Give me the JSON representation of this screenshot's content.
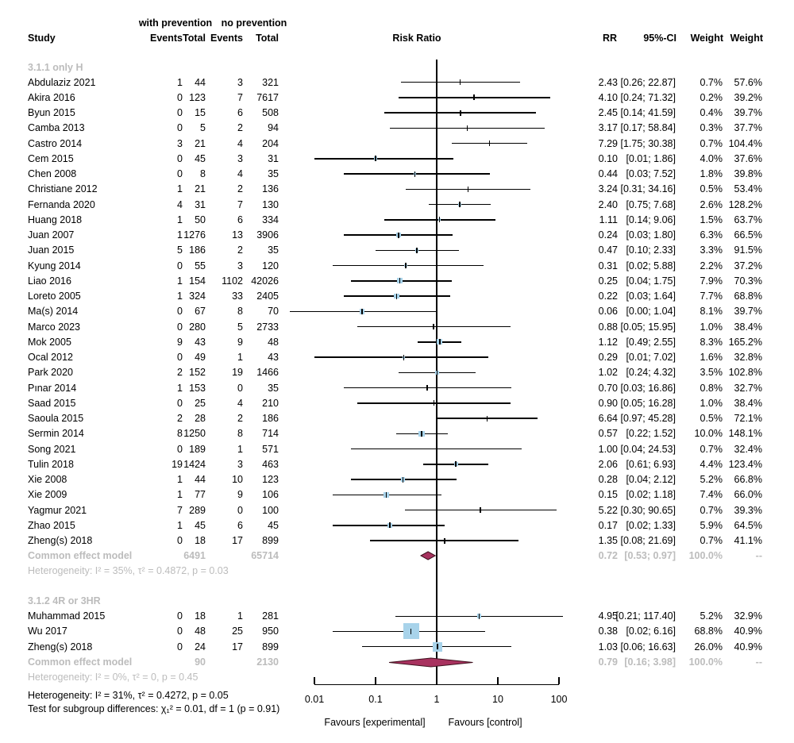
{
  "chart_data": {
    "type": "forest",
    "effect_measure": "Risk Ratio",
    "x_scale": "log",
    "x_tick_labels": [
      "0.01",
      "0.1",
      "1",
      "10",
      "100"
    ],
    "x_tick_values": [
      0.01,
      0.1,
      1,
      10,
      100
    ],
    "null_line_value": 1,
    "xlabel_left": "Favours [experimental]",
    "xlabel_right": "Favours [control]",
    "columns_left": {
      "group1": "with prevention",
      "group2": "no prevention",
      "study": "Study",
      "events1": "Events",
      "total1": "Total",
      "events2": "Events",
      "total2": "Total"
    },
    "columns_right": {
      "plot_title": "Risk Ratio",
      "rr": "RR",
      "ci": "95%-CI",
      "weight_common": "Weight",
      "weight_random": "Weight"
    },
    "groups": [
      {
        "title": "3.1.1 only H",
        "studies": [
          {
            "study": "Abdulaziz 2021",
            "events1": "1",
            "total1": "44",
            "events2": "3",
            "total2": "321",
            "rr": 2.43,
            "lo": 0.26,
            "hi": 22.87,
            "rr_label": "2.43",
            "ci_label": "[0.26; 22.87]",
            "w1": "0.7%",
            "w2": "57.6%"
          },
          {
            "study": "Akira 2016",
            "events1": "0",
            "total1": "123",
            "events2": "7",
            "total2": "7617",
            "rr": 4.1,
            "lo": 0.24,
            "hi": 71.32,
            "rr_label": "4.10",
            "ci_label": "[0.24; 71.32]",
            "w1": "0.2%",
            "w2": "39.2%"
          },
          {
            "study": "Byun 2015",
            "events1": "0",
            "total1": "15",
            "events2": "6",
            "total2": "508",
            "rr": 2.45,
            "lo": 0.14,
            "hi": 41.59,
            "rr_label": "2.45",
            "ci_label": "[0.14; 41.59]",
            "w1": "0.4%",
            "w2": "39.7%"
          },
          {
            "study": "Camba 2013",
            "events1": "0",
            "total1": "5",
            "events2": "2",
            "total2": "94",
            "rr": 3.17,
            "lo": 0.17,
            "hi": 58.84,
            "rr_label": "3.17",
            "ci_label": "[0.17; 58.84]",
            "w1": "0.3%",
            "w2": "37.7%"
          },
          {
            "study": "Castro 2014",
            "events1": "3",
            "total1": "21",
            "events2": "4",
            "total2": "204",
            "rr": 7.29,
            "lo": 1.75,
            "hi": 30.38,
            "rr_label": "7.29",
            "ci_label": "[1.75; 30.38]",
            "w1": "0.7%",
            "w2": "104.4%"
          },
          {
            "study": "Cem 2015",
            "events1": "0",
            "total1": "45",
            "events2": "3",
            "total2": "31",
            "rr": 0.1,
            "lo": 0.01,
            "hi": 1.86,
            "rr_label": "0.10",
            "ci_label": "[0.01; 1.86]",
            "w1": "4.0%",
            "w2": "37.6%"
          },
          {
            "study": "Chen 2008",
            "events1": "0",
            "total1": "8",
            "events2": "4",
            "total2": "35",
            "rr": 0.44,
            "lo": 0.03,
            "hi": 7.52,
            "rr_label": "0.44",
            "ci_label": "[0.03; 7.52]",
            "w1": "1.8%",
            "w2": "39.8%"
          },
          {
            "study": "Christiane 2012",
            "events1": "1",
            "total1": "21",
            "events2": "2",
            "total2": "136",
            "rr": 3.24,
            "lo": 0.31,
            "hi": 34.16,
            "rr_label": "3.24",
            "ci_label": "[0.31; 34.16]",
            "w1": "0.5%",
            "w2": "53.4%"
          },
          {
            "study": "Fernanda 2020",
            "events1": "4",
            "total1": "31",
            "events2": "7",
            "total2": "130",
            "rr": 2.4,
            "lo": 0.75,
            "hi": 7.68,
            "rr_label": "2.40",
            "ci_label": "[0.75; 7.68]",
            "w1": "2.6%",
            "w2": "128.2%"
          },
          {
            "study": "Huang 2018",
            "events1": "1",
            "total1": "50",
            "events2": "6",
            "total2": "334",
            "rr": 1.11,
            "lo": 0.14,
            "hi": 9.06,
            "rr_label": "1.11",
            "ci_label": "[0.14; 9.06]",
            "w1": "1.5%",
            "w2": "63.7%"
          },
          {
            "study": "Juan 2007",
            "events1": "1",
            "total1": "1276",
            "events2": "13",
            "total2": "3906",
            "rr": 0.24,
            "lo": 0.03,
            "hi": 1.8,
            "rr_label": "0.24",
            "ci_label": "[0.03; 1.80]",
            "w1": "6.3%",
            "w2": "66.5%"
          },
          {
            "study": "Juan 2015",
            "events1": "5",
            "total1": "186",
            "events2": "2",
            "total2": "35",
            "rr": 0.47,
            "lo": 0.1,
            "hi": 2.33,
            "rr_label": "0.47",
            "ci_label": "[0.10; 2.33]",
            "w1": "3.3%",
            "w2": "91.5%"
          },
          {
            "study": "Kyung 2014",
            "events1": "0",
            "total1": "55",
            "events2": "3",
            "total2": "120",
            "rr": 0.31,
            "lo": 0.02,
            "hi": 5.88,
            "rr_label": "0.31",
            "ci_label": "[0.02; 5.88]",
            "w1": "2.2%",
            "w2": "37.2%"
          },
          {
            "study": "Liao 2016",
            "events1": "1",
            "total1": "154",
            "events2": "1102",
            "total2": "42026",
            "rr": 0.25,
            "lo": 0.04,
            "hi": 1.75,
            "rr_label": "0.25",
            "ci_label": "[0.04; 1.75]",
            "w1": "7.9%",
            "w2": "70.3%"
          },
          {
            "study": "Loreto 2005",
            "events1": "1",
            "total1": "324",
            "events2": "33",
            "total2": "2405",
            "rr": 0.22,
            "lo": 0.03,
            "hi": 1.64,
            "rr_label": "0.22",
            "ci_label": "[0.03; 1.64]",
            "w1": "7.7%",
            "w2": "68.8%"
          },
          {
            "study": "Ma(s) 2014",
            "events1": "0",
            "total1": "67",
            "events2": "8",
            "total2": "70",
            "rr": 0.06,
            "lo": 0.0,
            "hi": 1.04,
            "rr_label": "0.06",
            "ci_label": "[0.00; 1.04]",
            "w1": "8.1%",
            "w2": "39.7%"
          },
          {
            "study": "Marco 2023",
            "events1": "0",
            "total1": "280",
            "events2": "5",
            "total2": "2733",
            "rr": 0.88,
            "lo": 0.05,
            "hi": 15.95,
            "rr_label": "0.88",
            "ci_label": "[0.05; 15.95]",
            "w1": "1.0%",
            "w2": "38.4%"
          },
          {
            "study": "Mok 2005",
            "events1": "9",
            "total1": "43",
            "events2": "9",
            "total2": "48",
            "rr": 1.12,
            "lo": 0.49,
            "hi": 2.55,
            "rr_label": "1.12",
            "ci_label": "[0.49; 2.55]",
            "w1": "8.3%",
            "w2": "165.2%"
          },
          {
            "study": "Ocal 2012",
            "events1": "0",
            "total1": "49",
            "events2": "1",
            "total2": "43",
            "rr": 0.29,
            "lo": 0.01,
            "hi": 7.02,
            "rr_label": "0.29",
            "ci_label": "[0.01; 7.02]",
            "w1": "1.6%",
            "w2": "32.8%"
          },
          {
            "study": "Park 2020",
            "events1": "2",
            "total1": "152",
            "events2": "19",
            "total2": "1466",
            "rr": 1.02,
            "lo": 0.24,
            "hi": 4.32,
            "rr_label": "1.02",
            "ci_label": "[0.24; 4.32]",
            "w1": "3.5%",
            "w2": "102.8%"
          },
          {
            "study": "Pınar 2014",
            "events1": "1",
            "total1": "153",
            "events2": "0",
            "total2": "35",
            "rr": 0.7,
            "lo": 0.03,
            "hi": 16.86,
            "rr_label": "0.70",
            "ci_label": "[0.03; 16.86]",
            "w1": "0.8%",
            "w2": "32.7%"
          },
          {
            "study": "Saad 2015",
            "events1": "0",
            "total1": "25",
            "events2": "4",
            "total2": "210",
            "rr": 0.9,
            "lo": 0.05,
            "hi": 16.28,
            "rr_label": "0.90",
            "ci_label": "[0.05; 16.28]",
            "w1": "1.0%",
            "w2": "38.4%"
          },
          {
            "study": "Saoula 2015",
            "events1": "2",
            "total1": "28",
            "events2": "2",
            "total2": "186",
            "rr": 6.64,
            "lo": 0.97,
            "hi": 45.28,
            "rr_label": "6.64",
            "ci_label": "[0.97; 45.28]",
            "w1": "0.5%",
            "w2": "72.1%"
          },
          {
            "study": "Sermin 2014",
            "events1": "8",
            "total1": "1250",
            "events2": "8",
            "total2": "714",
            "rr": 0.57,
            "lo": 0.22,
            "hi": 1.52,
            "rr_label": "0.57",
            "ci_label": "[0.22; 1.52]",
            "w1": "10.0%",
            "w2": "148.1%"
          },
          {
            "study": "Song 2021",
            "events1": "0",
            "total1": "189",
            "events2": "1",
            "total2": "571",
            "rr": 1.0,
            "lo": 0.04,
            "hi": 24.53,
            "rr_label": "1.00",
            "ci_label": "[0.04; 24.53]",
            "w1": "0.7%",
            "w2": "32.4%"
          },
          {
            "study": "Tulin 2018",
            "events1": "19",
            "total1": "1424",
            "events2": "3",
            "total2": "463",
            "rr": 2.06,
            "lo": 0.61,
            "hi": 6.93,
            "rr_label": "2.06",
            "ci_label": "[0.61; 6.93]",
            "w1": "4.4%",
            "w2": "123.4%"
          },
          {
            "study": "Xie 2008",
            "events1": "1",
            "total1": "44",
            "events2": "10",
            "total2": "123",
            "rr": 0.28,
            "lo": 0.04,
            "hi": 2.12,
            "rr_label": "0.28",
            "ci_label": "[0.04; 2.12]",
            "w1": "5.2%",
            "w2": "66.8%"
          },
          {
            "study": "Xie 2009",
            "events1": "1",
            "total1": "77",
            "events2": "9",
            "total2": "106",
            "rr": 0.15,
            "lo": 0.02,
            "hi": 1.18,
            "rr_label": "0.15",
            "ci_label": "[0.02; 1.18]",
            "w1": "7.4%",
            "w2": "66.0%"
          },
          {
            "study": "Yagmur 2021",
            "events1": "7",
            "total1": "289",
            "events2": "0",
            "total2": "100",
            "rr": 5.22,
            "lo": 0.3,
            "hi": 90.65,
            "rr_label": "5.22",
            "ci_label": "[0.30; 90.65]",
            "w1": "0.7%",
            "w2": "39.3%"
          },
          {
            "study": "Zhao 2015",
            "events1": "1",
            "total1": "45",
            "events2": "6",
            "total2": "45",
            "rr": 0.17,
            "lo": 0.02,
            "hi": 1.33,
            "rr_label": "0.17",
            "ci_label": "[0.02; 1.33]",
            "w1": "5.9%",
            "w2": "64.5%"
          },
          {
            "study": "Zheng(s) 2018",
            "events1": "0",
            "total1": "18",
            "events2": "17",
            "total2": "899",
            "rr": 1.35,
            "lo": 0.08,
            "hi": 21.69,
            "rr_label": "1.35",
            "ci_label": "[0.08; 21.69]",
            "w1": "0.7%",
            "w2": "41.1%"
          }
        ],
        "summary": {
          "label": "Common effect model",
          "total1": "6491",
          "total2": "65714",
          "rr": 0.72,
          "lo": 0.53,
          "hi": 0.97,
          "rr_label": "0.72",
          "ci_label": "[0.53; 0.97]",
          "w1": "100.0%",
          "w2": "--"
        },
        "heterogeneity": "Heterogeneity: I² = 35%, τ² = 0.4872, p = 0.03"
      },
      {
        "title": "3.1.2 4R or 3HR",
        "studies": [
          {
            "study": "Muhammad 2015",
            "events1": "0",
            "total1": "18",
            "events2": "1",
            "total2": "281",
            "rr": 4.95,
            "lo": 0.21,
            "hi": 117.4,
            "rr_label": "4.95",
            "ci_label": "[0.21; 117.40]",
            "w1": "5.2%",
            "w2": "32.9%"
          },
          {
            "study": "Wu 2017",
            "events1": "0",
            "total1": "48",
            "events2": "25",
            "total2": "950",
            "rr": 0.38,
            "lo": 0.02,
            "hi": 6.16,
            "rr_label": "0.38",
            "ci_label": "[0.02; 6.16]",
            "w1": "68.8%",
            "w2": "40.9%"
          },
          {
            "study": "Zheng(s) 2018",
            "events1": "0",
            "total1": "24",
            "events2": "17",
            "total2": "899",
            "rr": 1.03,
            "lo": 0.06,
            "hi": 16.63,
            "rr_label": "1.03",
            "ci_label": "[0.06; 16.63]",
            "w1": "26.0%",
            "w2": "40.9%"
          }
        ],
        "summary": {
          "label": "Common effect model",
          "total1": "90",
          "total2": "2130",
          "rr": 0.79,
          "lo": 0.16,
          "hi": 3.98,
          "rr_label": "0.79",
          "ci_label": "[0.16; 3.98]",
          "w1": "100.0%",
          "w2": "--"
        },
        "heterogeneity": "Heterogeneity: I² = 0%, τ² = 0, p = 0.45"
      }
    ],
    "footer": {
      "heterogeneity": "Heterogeneity: I² = 31%, τ² = 0.4272, p = 0.05",
      "subgroup_test": "Test for subgroup differences: χ₁² = 0.01, df = 1 (p = 0.91)"
    },
    "colors": {
      "square": "#a8d3ea",
      "diamond_fill": "#a8325f",
      "diamond_stroke": "#40121f",
      "gray_text": "#bcbcbc",
      "line": "#000000"
    }
  }
}
